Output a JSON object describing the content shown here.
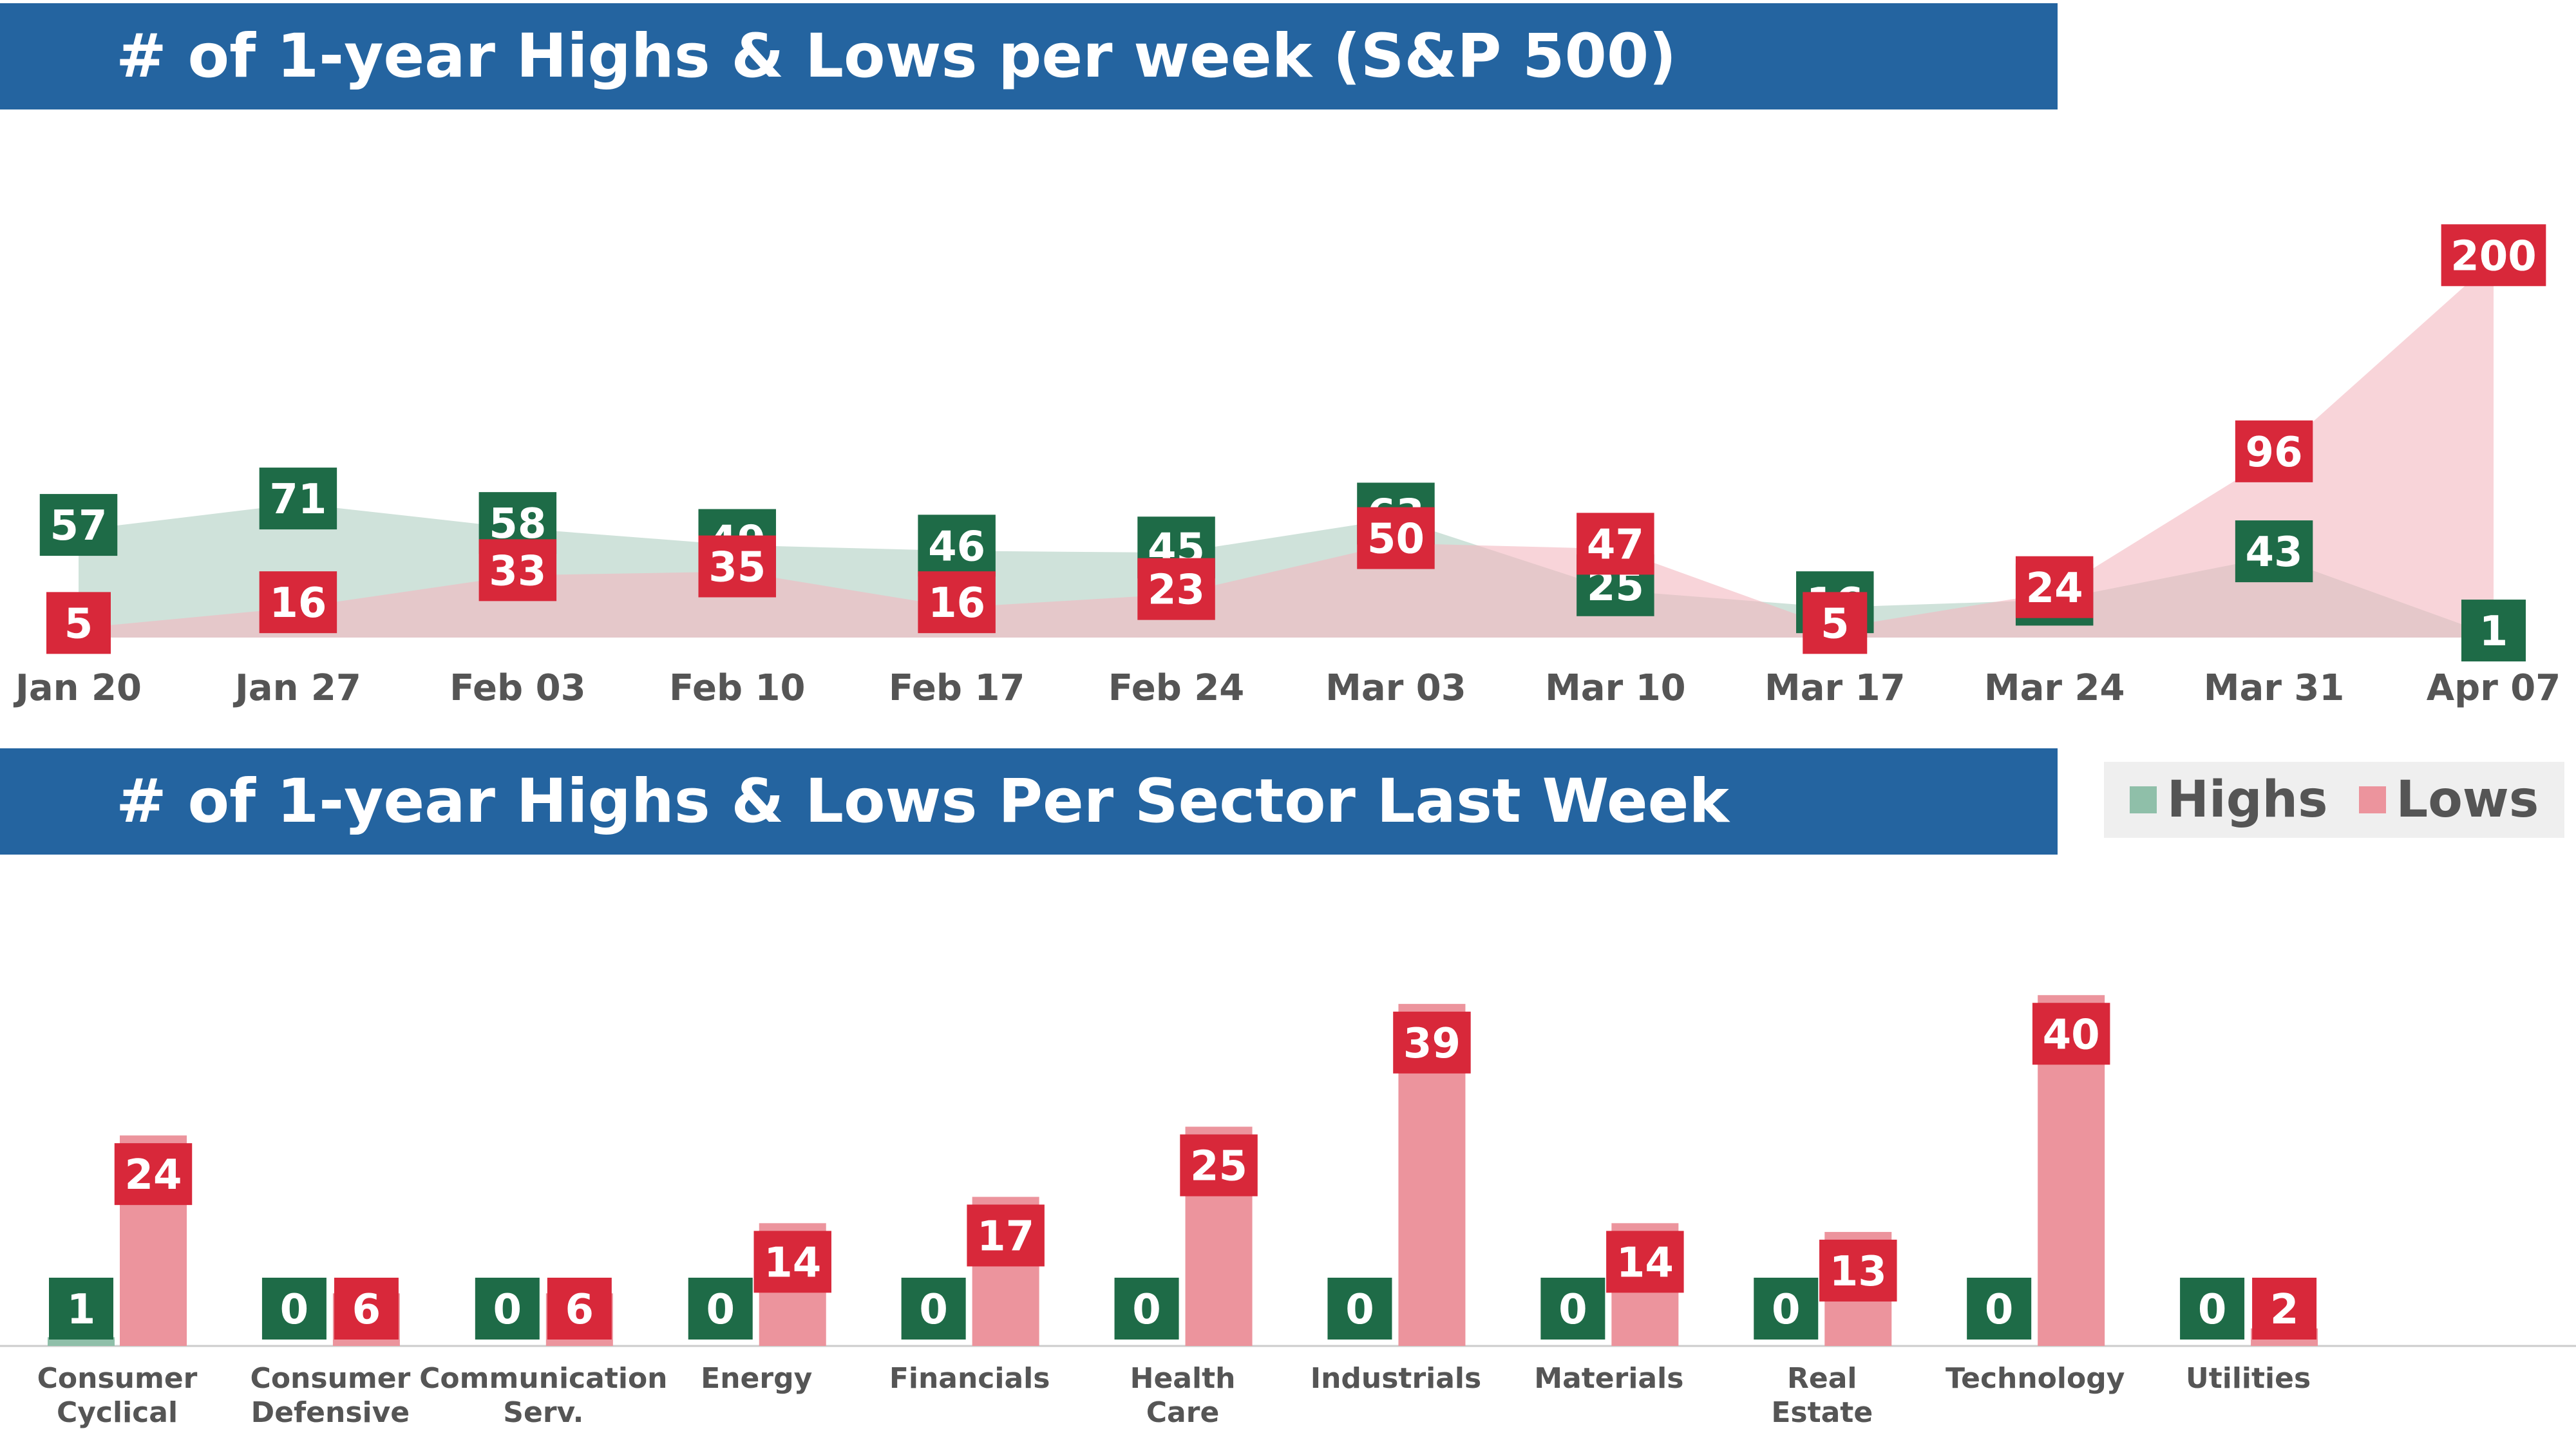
{
  "colors": {
    "banner": "#2464a0",
    "highs_label": "#1e6b47",
    "lows_label": "#d8283a",
    "highs_fill": "#a8cbbc",
    "lows_fill": "#f4b8bf",
    "highs_bar": "#8fbfa9",
    "lows_bar": "#ec949d"
  },
  "banners": {
    "weekly_title": "# of 1-year Highs & Lows per week (S&P 500)",
    "sector_title": "# of 1-year Highs & Lows Per Sector Last Week"
  },
  "legend": {
    "highs": "Highs",
    "lows": "Lows"
  },
  "chart_data": [
    {
      "type": "area",
      "title": "# of 1-year Highs & Lows per week (S&P 500)",
      "categories": [
        "Jan 20",
        "Jan 27",
        "Feb 03",
        "Feb 10",
        "Feb 17",
        "Feb 24",
        "Mar 03",
        "Mar 10",
        "Mar 17",
        "Mar 24",
        "Mar 31",
        "Apr 07"
      ],
      "series": [
        {
          "name": "Highs",
          "values": [
            57,
            71,
            58,
            49,
            46,
            45,
            63,
            25,
            16,
            20,
            43,
            1
          ]
        },
        {
          "name": "Lows",
          "values": [
            5,
            16,
            33,
            35,
            16,
            23,
            50,
            47,
            5,
            24,
            96,
            200
          ]
        }
      ],
      "ylim": [
        0,
        210
      ],
      "grid": false,
      "legend": "none"
    },
    {
      "type": "bar",
      "title": "# of 1-year Highs & Lows Per Sector Last Week",
      "categories": [
        "Consumer Cyclical",
        "Consumer Defensive",
        "Communication Serv.",
        "Energy",
        "Financials",
        "Health Care",
        "Industrials",
        "Materials",
        "Real Estate",
        "Technology",
        "Utilities"
      ],
      "series": [
        {
          "name": "Highs",
          "values": [
            1,
            0,
            0,
            0,
            0,
            0,
            0,
            0,
            0,
            0,
            0
          ]
        },
        {
          "name": "Lows",
          "values": [
            24,
            6,
            6,
            14,
            17,
            25,
            39,
            14,
            13,
            40,
            2
          ]
        }
      ],
      "ylim": [
        0,
        42
      ],
      "grid": false,
      "legend": "top-right"
    }
  ]
}
